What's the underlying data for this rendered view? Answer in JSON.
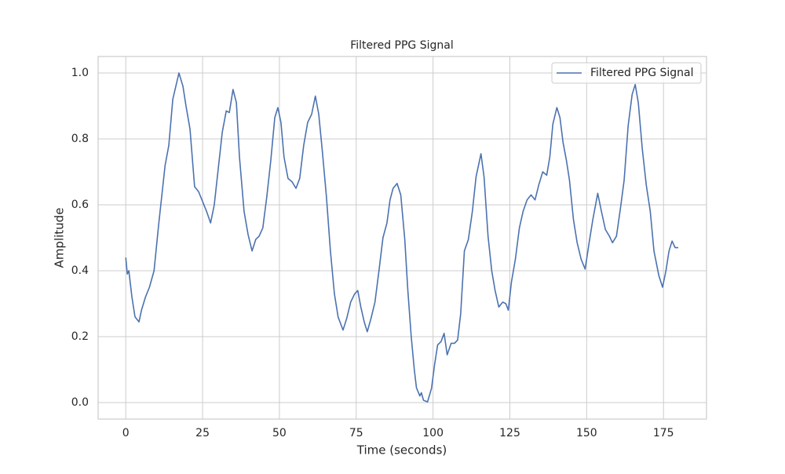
{
  "chart_data": {
    "type": "line",
    "title": "Filtered PPG Signal",
    "x_label": "Time (seconds)",
    "y_label": "Amplitude",
    "x": [
      0,
      0.5,
      1,
      2,
      3,
      4.3,
      5.1,
      6.4,
      7.7,
      9.2,
      10.7,
      12.8,
      14,
      15.3,
      17.3,
      18.6,
      19.6,
      20.9,
      22.4,
      23.7,
      25,
      26.3,
      27.6,
      28.8,
      30.1,
      31.4,
      32.7,
      33.7,
      34.9,
      36,
      37,
      38.5,
      39.8,
      41.1,
      42.3,
      43.4,
      44.6,
      45.9,
      47.2,
      48.5,
      49.5,
      50.5,
      51.5,
      52.8,
      54.1,
      55.4,
      56.6,
      57.9,
      59.2,
      60.5,
      61.7,
      62.8,
      64,
      65.3,
      66.6,
      67.9,
      69.1,
      70.7,
      71.9,
      73.2,
      74.5,
      75.5,
      76.5,
      77.6,
      78.6,
      79.8,
      81.1,
      82.4,
      83.7,
      85,
      86,
      87,
      88.3,
      89.5,
      90.8,
      91.8,
      92.9,
      93.9,
      94.6,
      95.7,
      96.2,
      96.9,
      98.2,
      99.5,
      100.5,
      101.5,
      102.6,
      103.6,
      104.6,
      105.9,
      107,
      108,
      109,
      110.2,
      111.5,
      112.8,
      114,
      115.6,
      116.6,
      117.9,
      119.1,
      120.2,
      121.4,
      122.7,
      123.7,
      124.5,
      125.5,
      126.8,
      128.1,
      129.3,
      130.6,
      131.9,
      133.2,
      134.4,
      135.7,
      137,
      138,
      139,
      140.3,
      141.3,
      142.3,
      143.4,
      144.4,
      145.7,
      146.9,
      148.2,
      149.5,
      150.8,
      152,
      153.6,
      154.8,
      156.1,
      157.4,
      158.4,
      159.7,
      161,
      162.2,
      163.5,
      164.8,
      165.8,
      166.8,
      168.1,
      169.4,
      170.7,
      171.9,
      173.5,
      174.7,
      175.8,
      176.8,
      177.8,
      178.8,
      179.8
    ],
    "series": [
      {
        "name": "Filtered PPG Signal",
        "color": "#4c72b0",
        "values": [
          0.44,
          0.39,
          0.4,
          0.32,
          0.26,
          0.245,
          0.28,
          0.32,
          0.35,
          0.4,
          0.54,
          0.72,
          0.78,
          0.92,
          1.0,
          0.96,
          0.9,
          0.83,
          0.655,
          0.64,
          0.61,
          0.58,
          0.545,
          0.6,
          0.71,
          0.82,
          0.885,
          0.88,
          0.95,
          0.91,
          0.745,
          0.58,
          0.51,
          0.46,
          0.495,
          0.505,
          0.53,
          0.625,
          0.735,
          0.865,
          0.895,
          0.85,
          0.745,
          0.68,
          0.67,
          0.65,
          0.68,
          0.78,
          0.85,
          0.875,
          0.93,
          0.875,
          0.76,
          0.625,
          0.46,
          0.33,
          0.26,
          0.22,
          0.255,
          0.305,
          0.33,
          0.34,
          0.29,
          0.245,
          0.215,
          0.255,
          0.305,
          0.4,
          0.5,
          0.545,
          0.615,
          0.65,
          0.665,
          0.63,
          0.495,
          0.34,
          0.2,
          0.1,
          0.045,
          0.02,
          0.03,
          0.007,
          0.002,
          0.043,
          0.115,
          0.175,
          0.185,
          0.21,
          0.145,
          0.18,
          0.18,
          0.19,
          0.27,
          0.46,
          0.495,
          0.58,
          0.685,
          0.755,
          0.685,
          0.505,
          0.4,
          0.34,
          0.29,
          0.305,
          0.3,
          0.28,
          0.365,
          0.435,
          0.53,
          0.58,
          0.615,
          0.63,
          0.615,
          0.66,
          0.7,
          0.69,
          0.745,
          0.845,
          0.895,
          0.865,
          0.79,
          0.735,
          0.675,
          0.555,
          0.485,
          0.435,
          0.405,
          0.485,
          0.555,
          0.635,
          0.58,
          0.525,
          0.505,
          0.485,
          0.505,
          0.59,
          0.675,
          0.84,
          0.935,
          0.965,
          0.91,
          0.77,
          0.66,
          0.58,
          0.46,
          0.385,
          0.35,
          0.4,
          0.46,
          0.49,
          0.47,
          0.47
        ]
      }
    ],
    "xlim": [
      -9,
      189
    ],
    "ylim": [
      -0.05,
      1.05
    ],
    "xticks": [
      0,
      25,
      50,
      75,
      100,
      125,
      150,
      175
    ],
    "yticks": [
      {
        "value": 0,
        "label": "0.0"
      },
      0.2,
      0.4,
      0.6,
      0.8,
      {
        "value": 1,
        "label": "1.0"
      }
    ],
    "grid": true,
    "legend": "upper right"
  }
}
